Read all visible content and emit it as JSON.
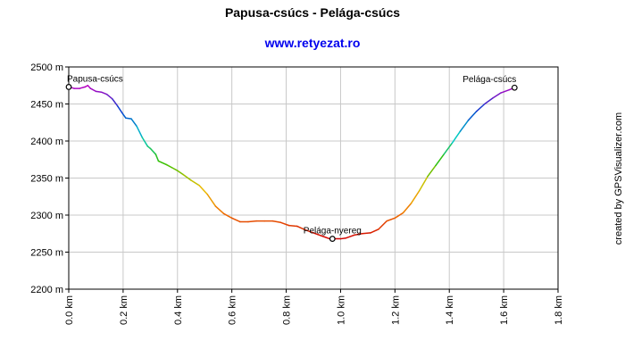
{
  "chart_data": {
    "type": "line",
    "title": "Papusa-csúcs - Pelága-csúcs",
    "subtitle": "www.retyezat.ro",
    "credit": "created by GPSVisualizer.com",
    "x_unit": "km",
    "y_unit": "m",
    "xlim": [
      0,
      1.8
    ],
    "ylim": [
      2200,
      2500
    ],
    "x_ticks": [
      "0.0 km",
      "0.2 km",
      "0.4 km",
      "0.6 km",
      "0.8 km",
      "1.0 km",
      "1.2 km",
      "1.4 km",
      "1.6 km",
      "1.8 km"
    ],
    "y_ticks": [
      "2200 m",
      "2250 m",
      "2300 m",
      "2350 m",
      "2400 m",
      "2450 m",
      "2500 m"
    ],
    "grid": true,
    "color_by": "elevation",
    "points": [
      [
        0.0,
        2473
      ],
      [
        0.02,
        2471
      ],
      [
        0.04,
        2471
      ],
      [
        0.06,
        2473
      ],
      [
        0.07,
        2475
      ],
      [
        0.08,
        2471
      ],
      [
        0.1,
        2467
      ],
      [
        0.12,
        2466
      ],
      [
        0.14,
        2463
      ],
      [
        0.16,
        2457
      ],
      [
        0.18,
        2447
      ],
      [
        0.2,
        2436
      ],
      [
        0.21,
        2431
      ],
      [
        0.23,
        2430
      ],
      [
        0.25,
        2420
      ],
      [
        0.27,
        2405
      ],
      [
        0.29,
        2393
      ],
      [
        0.3,
        2390
      ],
      [
        0.32,
        2382
      ],
      [
        0.33,
        2373
      ],
      [
        0.36,
        2368
      ],
      [
        0.38,
        2364
      ],
      [
        0.4,
        2360
      ],
      [
        0.42,
        2355
      ],
      [
        0.45,
        2347
      ],
      [
        0.48,
        2340
      ],
      [
        0.51,
        2328
      ],
      [
        0.54,
        2312
      ],
      [
        0.57,
        2302
      ],
      [
        0.6,
        2296
      ],
      [
        0.63,
        2291
      ],
      [
        0.66,
        2291
      ],
      [
        0.69,
        2292
      ],
      [
        0.72,
        2292
      ],
      [
        0.75,
        2292
      ],
      [
        0.78,
        2290
      ],
      [
        0.81,
        2286
      ],
      [
        0.84,
        2285
      ],
      [
        0.87,
        2280
      ],
      [
        0.9,
        2276
      ],
      [
        0.93,
        2272
      ],
      [
        0.96,
        2268
      ],
      [
        0.98,
        2268
      ],
      [
        1.0,
        2268
      ],
      [
        1.02,
        2269
      ],
      [
        1.05,
        2273
      ],
      [
        1.08,
        2275
      ],
      [
        1.11,
        2276
      ],
      [
        1.14,
        2281
      ],
      [
        1.17,
        2292
      ],
      [
        1.2,
        2296
      ],
      [
        1.23,
        2303
      ],
      [
        1.26,
        2316
      ],
      [
        1.29,
        2333
      ],
      [
        1.32,
        2352
      ],
      [
        1.35,
        2367
      ],
      [
        1.38,
        2382
      ],
      [
        1.41,
        2397
      ],
      [
        1.44,
        2413
      ],
      [
        1.47,
        2428
      ],
      [
        1.5,
        2440
      ],
      [
        1.53,
        2450
      ],
      [
        1.56,
        2458
      ],
      [
        1.59,
        2465
      ],
      [
        1.62,
        2469
      ],
      [
        1.64,
        2472
      ]
    ],
    "waypoints": [
      {
        "name": "Papusa-csúcs",
        "x": 0.0,
        "y": 2473,
        "anchor": "start"
      },
      {
        "name": "Pelága-nyereg",
        "x": 0.97,
        "y": 2268,
        "anchor": "middle"
      },
      {
        "name": "Pelága-csúcs",
        "x": 1.64,
        "y": 2472,
        "anchor": "end"
      }
    ],
    "colors": {
      "title": "#000000",
      "subtitle": "#0000ee",
      "axis": "#000000",
      "grid": "#c8c8c8",
      "ramp": [
        "#d00000",
        "#f07000",
        "#e8c000",
        "#30c000",
        "#00c8c8",
        "#0040d0",
        "#c000c0"
      ]
    }
  }
}
